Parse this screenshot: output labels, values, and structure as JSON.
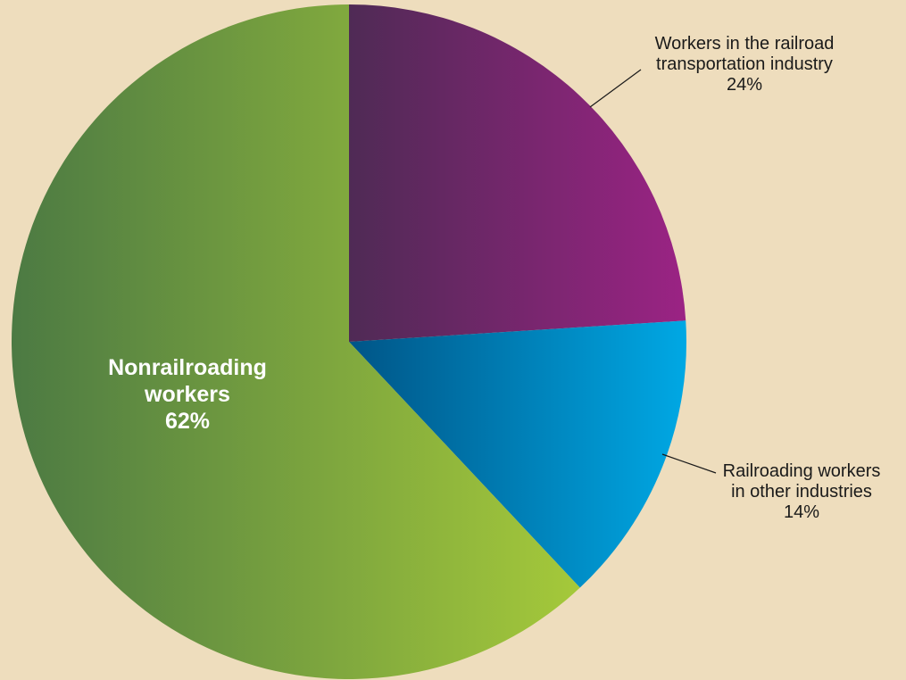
{
  "chart_data": {
    "type": "pie",
    "title": "",
    "start_angle_deg": 0,
    "direction": "clockwise",
    "legend": "none",
    "slices": [
      {
        "label_lines": [
          "Workers in the railroad",
          "transportation industry",
          "24%"
        ],
        "value": 24,
        "colors": [
          "#4f2a55",
          "#9b2384"
        ],
        "label_style": "outside"
      },
      {
        "label_lines": [
          "Railroading workers",
          "in other industries",
          "14%"
        ],
        "value": 14,
        "colors": [
          "#005587",
          "#00a8e4"
        ],
        "label_style": "outside"
      },
      {
        "label_lines": [
          "Nonrailroading",
          "workers",
          "62%"
        ],
        "value": 62,
        "colors": [
          "#4c7a43",
          "#a5c93a"
        ],
        "label_style": "inside"
      }
    ]
  }
}
